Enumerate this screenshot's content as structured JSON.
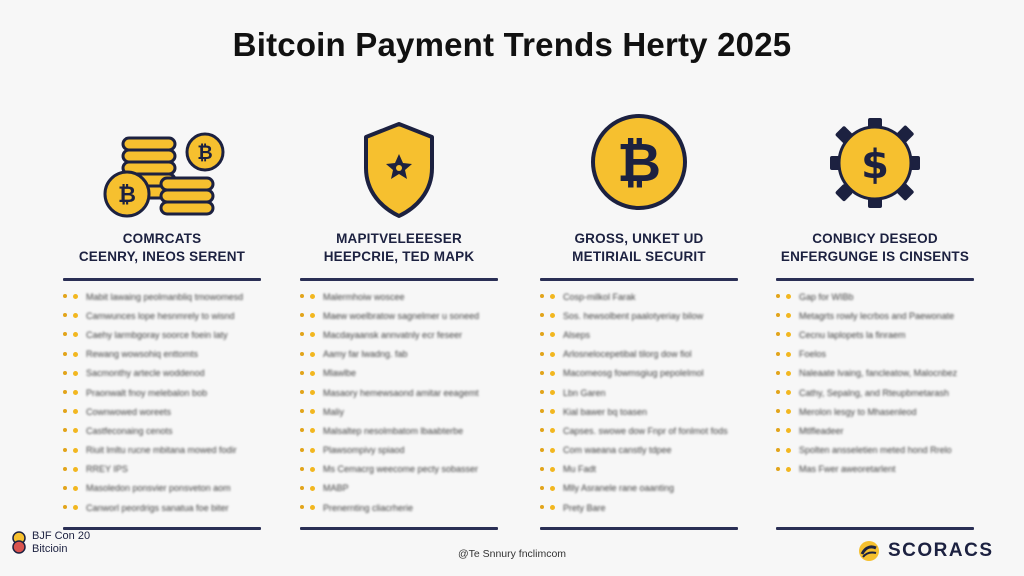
{
  "title": "Bitcoin Payment Trends Herty 2025",
  "columns": [
    {
      "icon": "coin-stack-icon",
      "heading_line1": "COMRCATS",
      "heading_line2": "CEENRY, INEOS SERENT",
      "items": [
        "Mabit lawaing peolmanbliq tmowomesd",
        "Camwunces lope hesnmrely to wisnd",
        "Caehy larmbgoray soorce foein laty",
        "Rewang wowsohiq enttomts",
        "Sacmonthy artecle woddenod",
        "Praonwalt fnoy melebalon bob",
        "Cownwowed woreets",
        "Castfeconaing cenots",
        "Riuit lmltu rucne mbitana mowed fodir",
        "RREY IPS",
        "Masoledon ponsvier ponsveton aom",
        "Canworl peordrigs sanatua foe biter"
      ]
    },
    {
      "icon": "shield-icon",
      "heading_line1": "MAPITVELEEESER",
      "heading_line2": "HEEPCRIE, TED MAPK",
      "items": [
        "Malermhoiw woscee",
        "Maew woelbratow sagnelmer u soneed",
        "Macdayaansk annvatnly ecr feseer",
        "Aamy far lwadng. fab",
        "Mlawlbe",
        "Masaory hemewsaond amitar eeagemt",
        "Maliy",
        "Malsaltep nesolmbatom lbaabterbe",
        "Plawsompivy spiaod",
        "Ms Cemacrg weecome pecty sobasser",
        "MABP",
        "Prenernting cliacrherie"
      ]
    },
    {
      "icon": "bitcoin-coin-icon",
      "heading_line1": "GROSS, UNKET UD",
      "heading_line2": "METIRIAIL SECURIT",
      "items": [
        "Cosp-milkol Farak",
        "Sos. hewsolbent paalotyeriay bilow",
        "Alseps",
        "Arlosnelocepetibal tilorg dow fiol",
        "Macomeosg fowmsgiug pepolelmol",
        "Lbn Garen",
        "Kial bawer bq toasen",
        "Capses. swowe dow Fnpr of fonlmot fods",
        "Com waeana canstly tdpee",
        "Mu Fadt",
        "Mlly Asranele rane oaanting",
        "Prety Bare"
      ]
    },
    {
      "icon": "dollar-gear-icon",
      "heading_line1": "CONBICY DESEOD",
      "heading_line2": "ENFERGUNGE IS CINSENTS",
      "items": [
        "Gap for WIBb",
        "Metagrts rowly lecrbos and Paewonate",
        "Cecnu laplopets la finraem",
        "Foelos",
        "Naleaate lvaing, fancleatow, Malocnbez",
        "Cathy, Sepalng, and Rteupbmetarash",
        "Merolon lesgy to Mhasenleod",
        "Mtlfleadeer",
        "Spolten ansseletien meted hond Rrelo",
        "Mas Fwer aweoretarlent"
      ]
    }
  ],
  "footer": {
    "left_line1": "BJF Con 20",
    "left_line2": "Bitcioin",
    "center": "@Te Snnury fnclimcom",
    "brand": "SCORACS"
  },
  "colors": {
    "gold": "#f6c02f",
    "navy": "#1c2140",
    "rule": "#2a2f55"
  }
}
